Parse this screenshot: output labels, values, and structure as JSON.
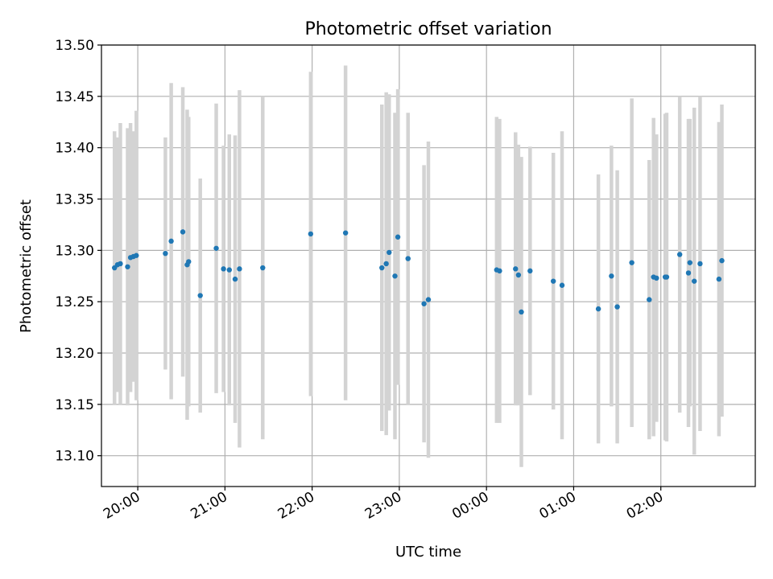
{
  "chart_data": {
    "type": "scatter",
    "title": "Photometric offset variation",
    "xlabel": "UTC time",
    "ylabel": "Photometric offset",
    "xlim": [
      "19:35",
      "03:05"
    ],
    "ylim": [
      13.07,
      13.5
    ],
    "grid": true,
    "x_ticks": [
      "20:00",
      "21:00",
      "22:00",
      "23:00",
      "00:00",
      "01:00",
      "02:00"
    ],
    "y_ticks": [
      "13.10",
      "13.15",
      "13.20",
      "13.25",
      "13.30",
      "13.35",
      "13.40",
      "13.45",
      "13.50"
    ],
    "colors": {
      "point": "#1f77b4",
      "errorbar": "#d3d3d3",
      "grid": "#b0b0b0"
    },
    "series": [
      {
        "x": [
          "19:44",
          "19:46",
          "19:48",
          "19:53",
          "19:55",
          "19:57",
          "19:59",
          "20:19",
          "20:23",
          "20:31",
          "20:34",
          "20:35",
          "20:43",
          "20:54",
          "20:59",
          "21:03",
          "21:07",
          "21:10",
          "21:26",
          "21:59",
          "22:23",
          "22:48",
          "22:51",
          "22:53",
          "22:57",
          "22:59",
          "23:06",
          "23:17",
          "23:20",
          "00:07",
          "00:09",
          "00:20",
          "00:22",
          "00:24",
          "00:30",
          "00:46",
          "00:52",
          "01:17",
          "01:26",
          "01:30",
          "01:40",
          "01:52",
          "01:55",
          "01:57",
          "02:03",
          "02:04",
          "02:13",
          "02:19",
          "02:20",
          "02:23",
          "02:27",
          "02:40",
          "02:42"
        ],
        "y": [
          13.283,
          13.286,
          13.287,
          13.284,
          13.293,
          13.294,
          13.295,
          13.297,
          13.309,
          13.318,
          13.286,
          13.289,
          13.256,
          13.302,
          13.282,
          13.281,
          13.272,
          13.282,
          13.283,
          13.316,
          13.317,
          13.283,
          13.287,
          13.298,
          13.275,
          13.313,
          13.292,
          13.248,
          13.252,
          13.281,
          13.28,
          13.282,
          13.276,
          13.24,
          13.28,
          13.27,
          13.266,
          13.243,
          13.275,
          13.245,
          13.288,
          13.252,
          13.274,
          13.273,
          13.274,
          13.274,
          13.296,
          13.278,
          13.288,
          13.27,
          13.287,
          13.272,
          13.29
        ],
        "err": [
          0.133,
          0.124,
          0.137,
          0.135,
          0.131,
          0.122,
          0.141,
          0.113,
          0.154,
          0.141,
          0.151,
          0.141,
          0.114,
          0.141,
          0.12,
          0.132,
          0.14,
          0.174,
          0.167,
          0.158,
          0.163,
          0.159,
          0.167,
          0.154,
          0.159,
          0.144,
          0.142,
          0.135,
          0.154,
          0.149,
          0.148,
          0.133,
          0.127,
          0.151,
          0.121,
          0.125,
          0.15,
          0.131,
          0.127,
          0.133,
          0.16,
          0.136,
          0.155,
          0.14,
          0.159,
          0.16,
          0.154,
          0.15,
          0.14,
          0.169,
          0.163,
          0.153,
          0.152
        ]
      }
    ]
  }
}
